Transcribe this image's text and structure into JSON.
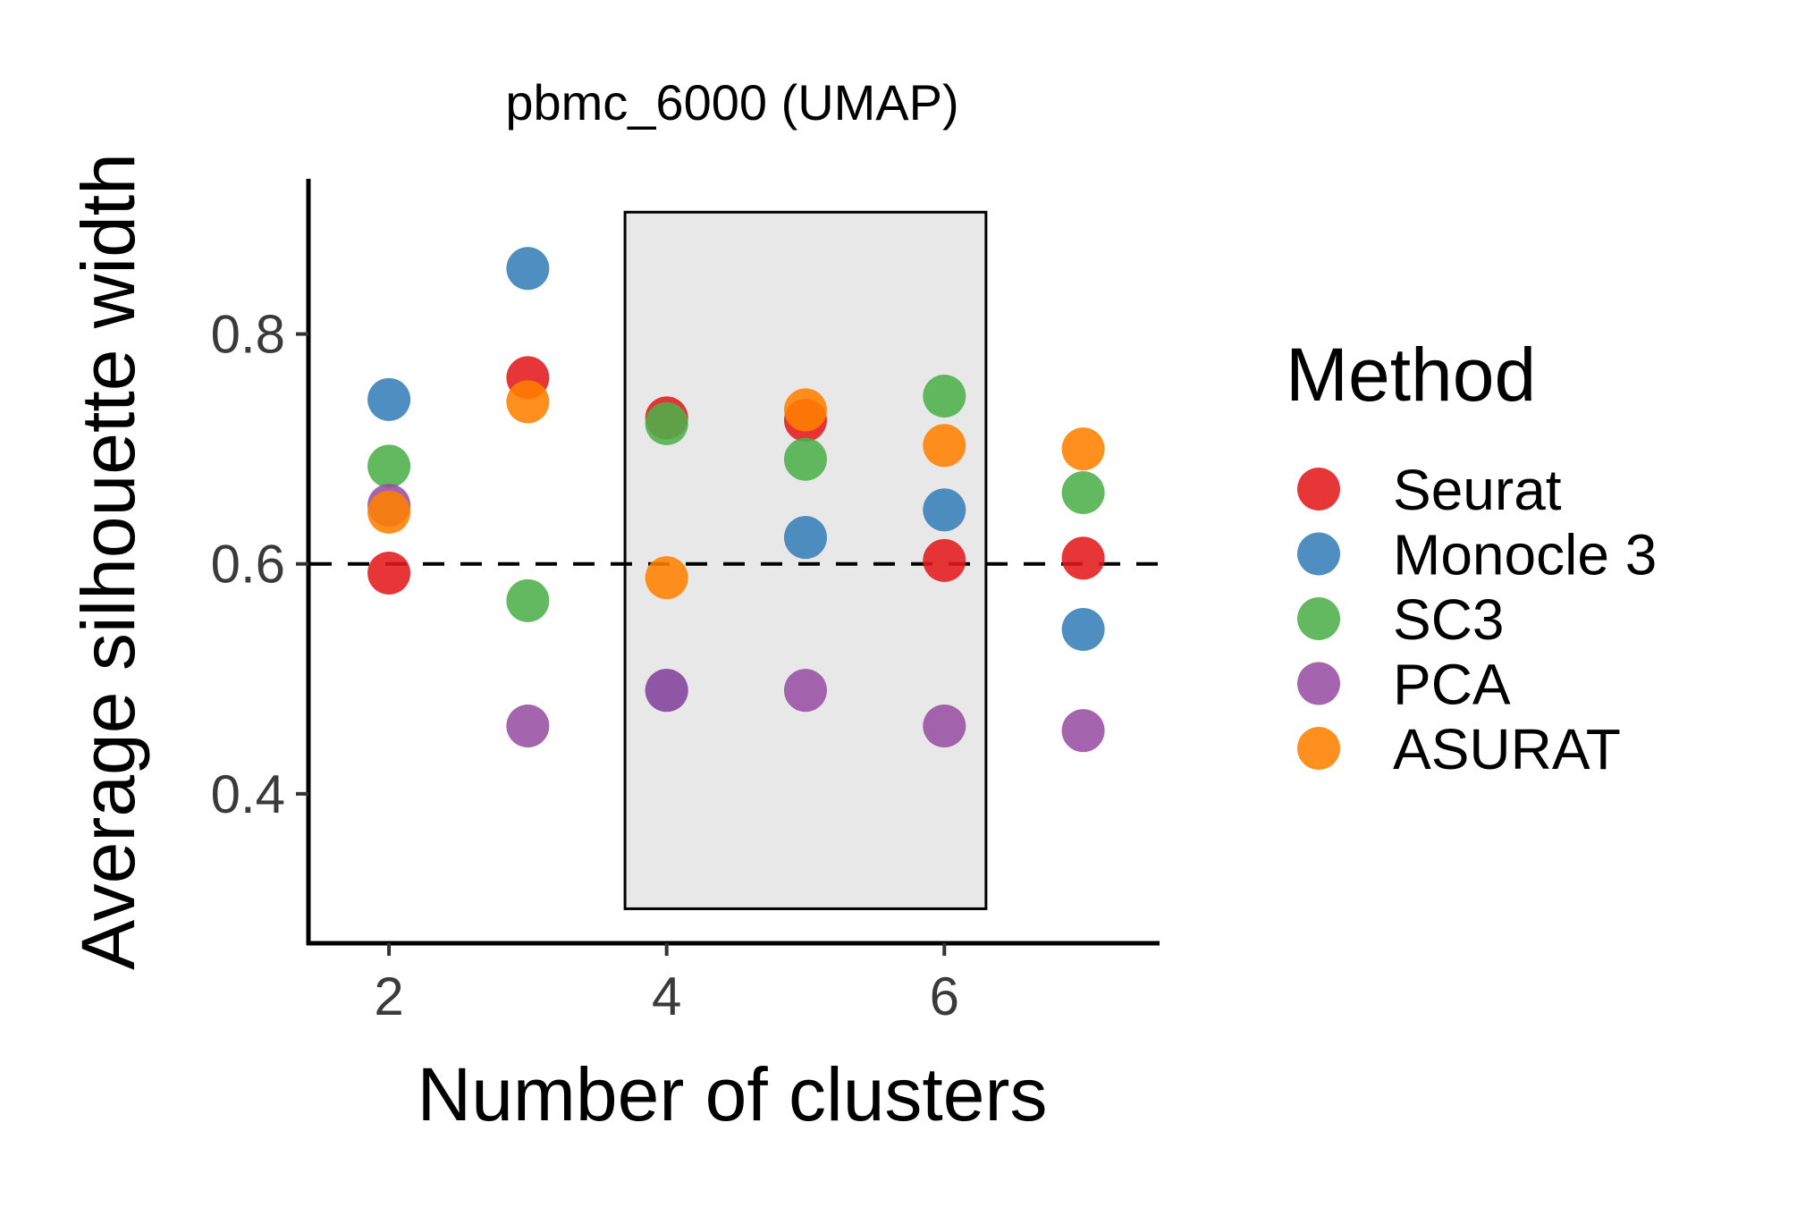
{
  "chart_data": {
    "type": "scatter",
    "title": "pbmc_6000 (UMAP)",
    "xlabel": "Number of clusters",
    "ylabel": "Average silhouette width",
    "xlim": [
      1.42,
      7.55
    ],
    "ylim": [
      0.27,
      0.935
    ],
    "xticks": [
      2,
      4,
      6
    ],
    "yticks": [
      0.4,
      0.6,
      0.8
    ],
    "xtick_labels": [
      "2",
      "4",
      "6"
    ],
    "ytick_labels": [
      "0.4",
      "0.6",
      "0.8"
    ],
    "grid": false,
    "reference_line": {
      "y": 0.6,
      "style": "dashed"
    },
    "highlight_region": {
      "x": [
        3.7,
        6.3
      ],
      "y": [
        0.3,
        0.906
      ],
      "fill": "#e8e8e8"
    },
    "legend": {
      "title": "Method",
      "position": "right"
    },
    "series": [
      {
        "name": "Seurat",
        "color": "#E41A1C",
        "points": [
          {
            "x": 2,
            "y": 0.592
          },
          {
            "x": 3,
            "y": 0.762
          },
          {
            "x": 4,
            "y": 0.727
          },
          {
            "x": 5,
            "y": 0.725
          },
          {
            "x": 6,
            "y": 0.603
          },
          {
            "x": 7,
            "y": 0.605
          }
        ]
      },
      {
        "name": "Monocle 3",
        "color": "#377EB8",
        "points": [
          {
            "x": 2,
            "y": 0.743
          },
          {
            "x": 3,
            "y": 0.857
          },
          {
            "x": 4,
            "y": 0.49
          },
          {
            "x": 5,
            "y": 0.623
          },
          {
            "x": 6,
            "y": 0.647
          },
          {
            "x": 7,
            "y": 0.543
          }
        ]
      },
      {
        "name": "SC3",
        "color": "#4DAF4A",
        "points": [
          {
            "x": 2,
            "y": 0.685
          },
          {
            "x": 3,
            "y": 0.568
          },
          {
            "x": 4,
            "y": 0.722
          },
          {
            "x": 5,
            "y": 0.691
          },
          {
            "x": 6,
            "y": 0.746
          },
          {
            "x": 7,
            "y": 0.662
          }
        ]
      },
      {
        "name": "PCA",
        "color": "#984EA3",
        "points": [
          {
            "x": 2,
            "y": 0.651
          },
          {
            "x": 3,
            "y": 0.459
          },
          {
            "x": 4,
            "y": 0.49
          },
          {
            "x": 5,
            "y": 0.49
          },
          {
            "x": 6,
            "y": 0.459
          },
          {
            "x": 7,
            "y": 0.455
          }
        ]
      },
      {
        "name": "ASURAT",
        "color": "#FF7F00",
        "points": [
          {
            "x": 2,
            "y": 0.645
          },
          {
            "x": 3,
            "y": 0.741
          },
          {
            "x": 4,
            "y": 0.588
          },
          {
            "x": 5,
            "y": 0.734
          },
          {
            "x": 6,
            "y": 0.703
          },
          {
            "x": 7,
            "y": 0.7
          }
        ]
      }
    ]
  }
}
